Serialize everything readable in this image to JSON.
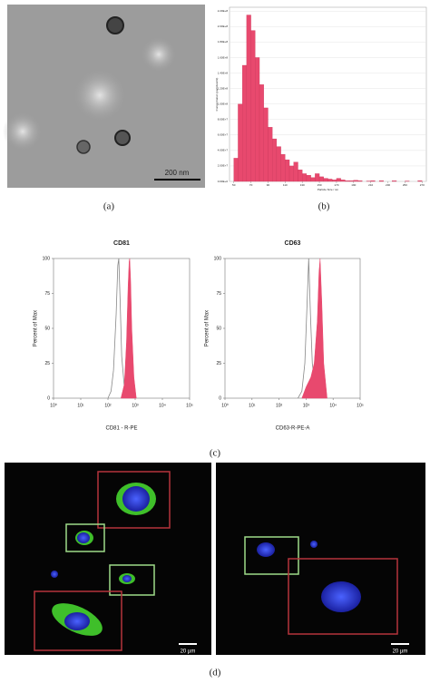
{
  "figure": {
    "panel_labels": [
      "(a)",
      "(b)",
      "(c)",
      "(d)"
    ],
    "scale_bars": [
      "200 nm",
      "20 µm",
      "20 µm"
    ]
  },
  "chart_data": [
    {
      "type": "histogram",
      "ylabel": "Concentration (particles/ml)",
      "xlabel": "Particle Size / nm",
      "color": "#e8496e",
      "bins": [
        50,
        55,
        60,
        65,
        70,
        75,
        80,
        85,
        90,
        95,
        100,
        105,
        110,
        115,
        120,
        125,
        130,
        135,
        140,
        145,
        150,
        155,
        160,
        165,
        170,
        175,
        180,
        185,
        190,
        195,
        200,
        205,
        210,
        215,
        220,
        225,
        230,
        235,
        240,
        245,
        250,
        255,
        260,
        265,
        270
      ],
      "values": [
        30000000,
        100000000,
        150000000,
        215000000,
        195000000,
        160000000,
        125000000,
        95000000,
        70000000,
        55000000,
        45000000,
        35000000,
        28000000,
        20000000,
        25000000,
        15000000,
        10000000,
        8000000,
        5000000,
        10000000,
        6000000,
        4000000,
        3000000,
        2000000,
        4000000,
        2000000,
        1000000,
        1000000,
        1500000,
        1000000,
        0,
        500000,
        1000000,
        0,
        1000000,
        0,
        0,
        800000,
        0,
        0,
        500000,
        0,
        0,
        1000000
      ],
      "xlim": [
        45,
        275
      ],
      "xticks": [
        50,
        70,
        90,
        110,
        130,
        150,
        170,
        190,
        210,
        230,
        250,
        270
      ],
      "ylim": [
        0,
        225000000
      ],
      "yticks": [
        {
          "value": 0,
          "label": "0.00E+0"
        },
        {
          "value": 20000000,
          "label": "2.00E+7"
        },
        {
          "value": 40000000,
          "label": "4.00E+7"
        },
        {
          "value": 60000000,
          "label": "6.00E+7"
        },
        {
          "value": 80000000,
          "label": "8.00E+7"
        },
        {
          "value": 100000000,
          "label": "1.00E+8"
        },
        {
          "value": 120000000,
          "label": "1.20E+8"
        },
        {
          "value": 140000000,
          "label": "1.40E+8"
        },
        {
          "value": 160000000,
          "label": "1.60E+8"
        },
        {
          "value": 180000000,
          "label": "1.80E+8"
        },
        {
          "value": 200000000,
          "label": "2.00E+8"
        },
        {
          "value": 220000000,
          "label": "2.20E+8"
        }
      ],
      "grid": true
    },
    {
      "type": "area",
      "title": "CD81",
      "xlabel": "CD81 - R-PE",
      "ylabel": "Percent of Max",
      "log_x": true,
      "xlim": [
        1,
        100000
      ],
      "xticks": [
        {
          "value": 1,
          "label": "10⁰"
        },
        {
          "value": 10,
          "label": "10¹"
        },
        {
          "value": 100,
          "label": "10²"
        },
        {
          "value": 1000,
          "label": "10³"
        },
        {
          "value": 10000,
          "label": "10⁴"
        },
        {
          "value": 100000,
          "label": "10⁵"
        }
      ],
      "ylim": [
        0,
        100
      ],
      "yticks": [
        0,
        25,
        50,
        75,
        100
      ],
      "series": [
        {
          "color": "#888888",
          "filled": false,
          "x": [
            100,
            130,
            160,
            200,
            230,
            250,
            280,
            320,
            400,
            500
          ],
          "values": [
            0,
            5,
            20,
            60,
            95,
            100,
            70,
            30,
            8,
            0
          ]
        },
        {
          "color": "#e8496e",
          "filled": true,
          "x": [
            300,
            400,
            480,
            550,
            600,
            630,
            680,
            750,
            900,
            1100
          ],
          "values": [
            0,
            10,
            40,
            80,
            98,
            100,
            85,
            50,
            15,
            0
          ]
        }
      ]
    },
    {
      "type": "area",
      "title": "CD63",
      "xlabel": "CD63-R-PE-A",
      "ylabel": "Percent of Max",
      "log_x": true,
      "xlim": [
        1,
        100000
      ],
      "xticks": [
        {
          "value": 1,
          "label": "10⁰"
        },
        {
          "value": 10,
          "label": "10¹"
        },
        {
          "value": 100,
          "label": "10²"
        },
        {
          "value": 1000,
          "label": "10³"
        },
        {
          "value": 10000,
          "label": "10⁴"
        },
        {
          "value": 100000,
          "label": "10⁵"
        }
      ],
      "ylim": [
        0,
        100
      ],
      "yticks": [
        0,
        25,
        50,
        75,
        100
      ],
      "series": [
        {
          "color": "#888888",
          "filled": false,
          "x": [
            500,
            700,
            900,
            1100,
            1250,
            1300,
            1450,
            1700,
            2200,
            2800
          ],
          "values": [
            0,
            5,
            25,
            70,
            100,
            90,
            60,
            25,
            8,
            0
          ]
        },
        {
          "color": "#e8496e",
          "filled": true,
          "x": [
            700,
            1000,
            1500,
            2000,
            2600,
            3000,
            3300,
            3800,
            4500,
            6000
          ],
          "values": [
            0,
            8,
            15,
            25,
            55,
            90,
            100,
            70,
            25,
            0
          ]
        }
      ]
    }
  ]
}
